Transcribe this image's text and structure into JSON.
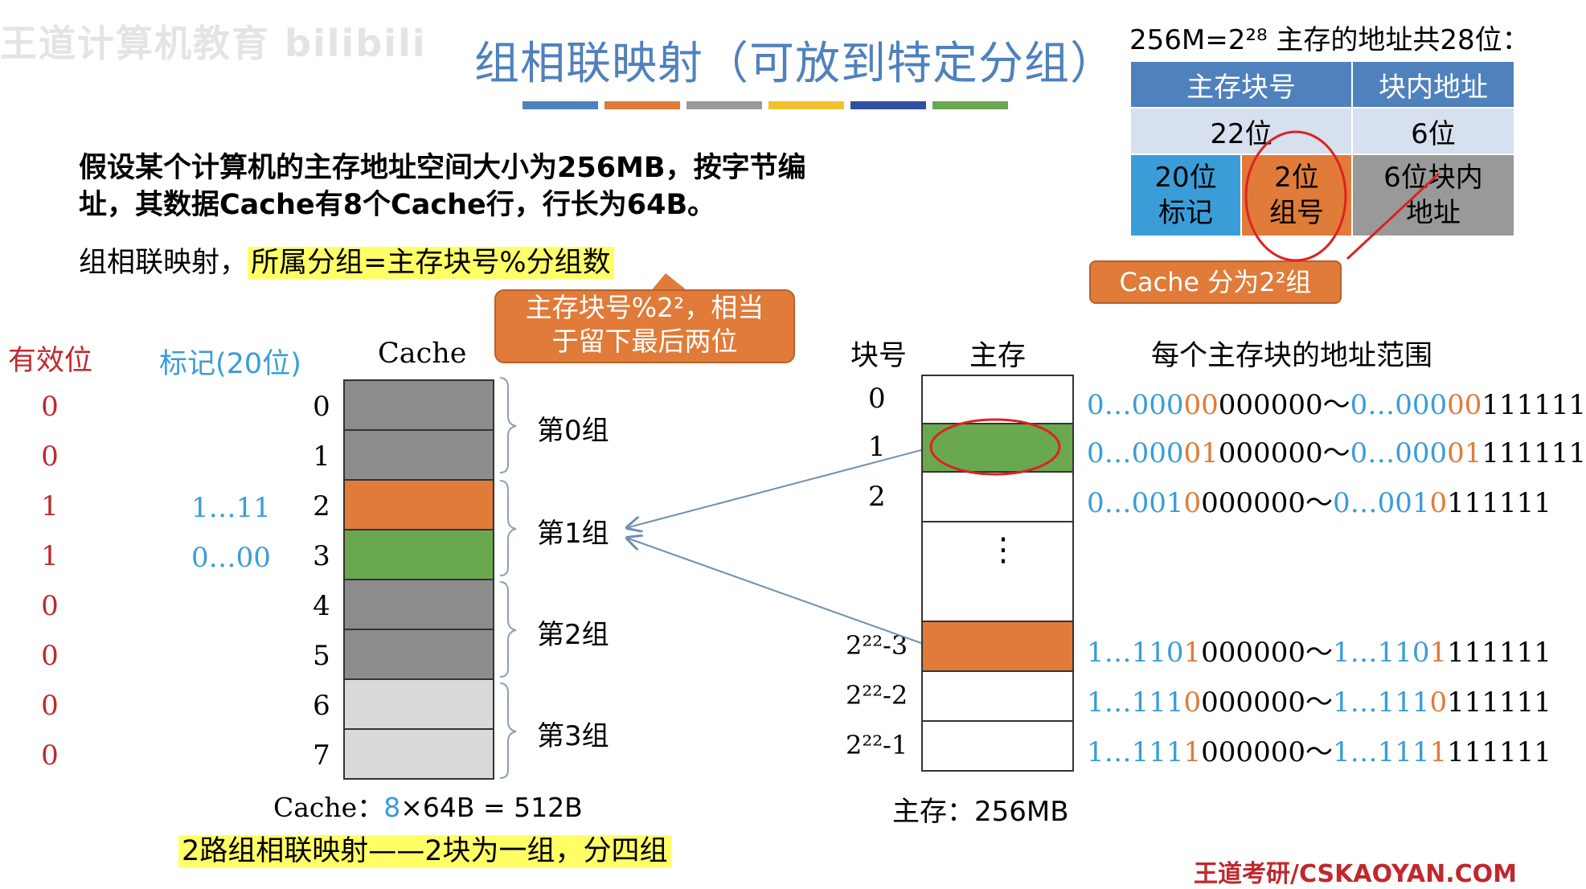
{
  "watermark": "王道计算机教育 bilibili",
  "title": "组相联映射（可放到特定分组）",
  "color_bars": [
    "#4f81bd",
    "#e07b39",
    "#999999",
    "#f2c12e",
    "#2f4fa0",
    "#6aa84f"
  ],
  "intro": {
    "line1": "假设某个计算机的主存地址空间大小为256MB，按字节编",
    "line2": "址，其数据Cache有8个Cache行，行长为64B。"
  },
  "rule": {
    "prefix": "组相联映射，",
    "highlight": "所属分组=主存块号%分组数"
  },
  "callout": {
    "line1": "主存块号%2²，相当",
    "line2": "于留下最后两位"
  },
  "address_table": {
    "note": "256M=2²⁸ 主存的地址共28位：",
    "h1": "主存块号",
    "h2": "块内地址",
    "r1a": "22位",
    "r1b": "6位",
    "tag_l1": "20位",
    "tag_l2": "标记",
    "grp_l1": "2位",
    "grp_l2": "组号",
    "off_l1": "6位块内",
    "off_l2": "地址",
    "badge": "Cache 分为2²组"
  },
  "cache": {
    "hdr_valid": "有效位",
    "hdr_tag": "标记(20位)",
    "hdr_cache": "Cache",
    "valid": [
      "0",
      "0",
      "1",
      "1",
      "0",
      "0",
      "0",
      "0"
    ],
    "tags": [
      "",
      "",
      "1…11",
      "0…00",
      "",
      "",
      "",
      ""
    ],
    "lines": [
      "0",
      "1",
      "2",
      "3",
      "4",
      "5",
      "6",
      "7"
    ],
    "colors": [
      "#8c8c8c",
      "#8c8c8c",
      "#e07b39",
      "#6aa84f",
      "#8c8c8c",
      "#8c8c8c",
      "#d9d9d9",
      "#d9d9d9"
    ],
    "groups": [
      "第0组",
      "第1组",
      "第2组",
      "第3组"
    ],
    "size_label": "Cache：",
    "size_count": "8",
    "size_rest": "×64B = 512B",
    "summary": "2路组相联映射——2块为一组，分四组"
  },
  "memory": {
    "hdr_block": "块号",
    "hdr_mem": "主存",
    "hdr_range": "每个主存块的地址范围",
    "blocks": [
      "0",
      "1",
      "2",
      "",
      "2²²-3",
      "2²²-2",
      "2²²-1"
    ],
    "ellipsis": "⋮",
    "size_label": "主存：256MB",
    "ranges": [
      {
        "p": "0…000",
        "o": "00",
        "k": "000000",
        "sep": "～",
        "p2": "0…000",
        "o2": "00",
        "k2": "111111"
      },
      {
        "p": "0…000",
        "o": "01",
        "k": "000000",
        "sep": "～",
        "p2": "0…000",
        "o2": "01",
        "k2": "111111"
      },
      {
        "p": "0…001",
        "o": "0",
        "k": "000000",
        "sep": "～",
        "p2": "0…001",
        "o2": "0",
        "k2": "111111"
      },
      {
        "p": "1…110",
        "o": "1",
        "k": "000000",
        "sep": "～",
        "p2": "1…110",
        "o2": "1",
        "k2": "111111"
      },
      {
        "p": "1…111",
        "o": "0",
        "k": "000000",
        "sep": "～",
        "p2": "1…111",
        "o2": "0",
        "k2": "111111"
      },
      {
        "p": "1…111",
        "o": "1",
        "k": "000000",
        "sep": "～",
        "p2": "1…111",
        "o2": "1",
        "k2": "111111"
      }
    ]
  },
  "brand": "王道考研/CSKAOYAN.COM"
}
